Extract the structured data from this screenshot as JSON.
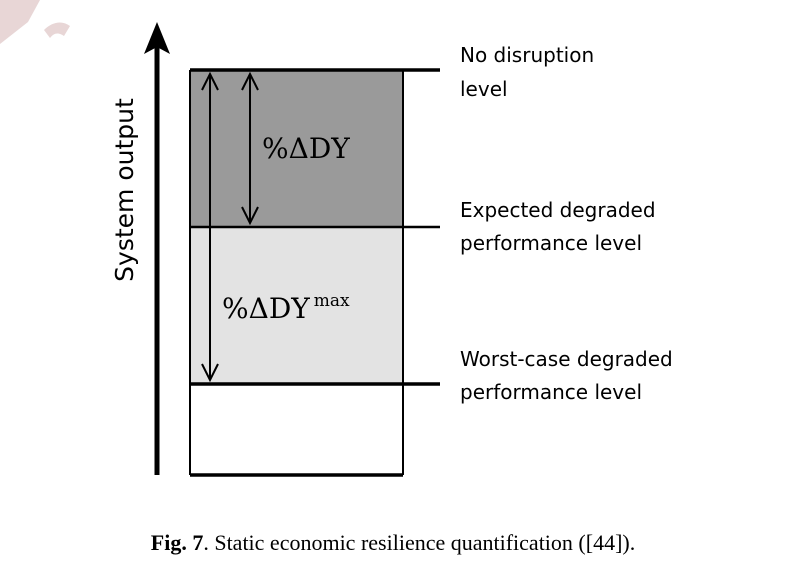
{
  "diagram": {
    "axis_label": "System output",
    "levels": [
      {
        "line1": "No disruption",
        "line2": "level"
      },
      {
        "line1": "Expected degraded",
        "line2": "performance level"
      },
      {
        "line1": "Worst-case degraded",
        "line2": "performance level"
      }
    ],
    "measures": [
      {
        "base": "%ΔDY",
        "sup": ""
      },
      {
        "base": "%ΔDY",
        "sup": "max"
      }
    ],
    "colors": {
      "upper_region": "#9a9a9a",
      "middle_region": "#e3e3e3",
      "lower_region": "#ffffff"
    }
  },
  "caption": {
    "label": "Fig. 7",
    "text": ". Static economic resilience quantification ([44])."
  }
}
